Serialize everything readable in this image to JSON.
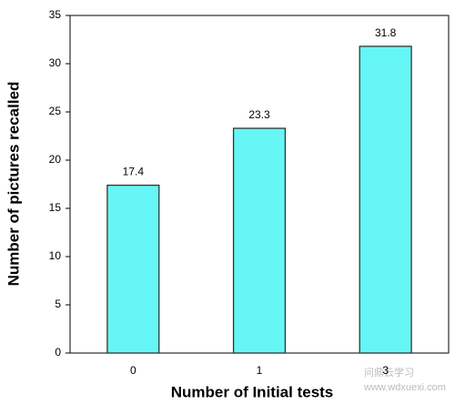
{
  "chart_data": {
    "type": "bar",
    "x_label": "Number of Initial tests",
    "y_label": "Number of pictures recalled",
    "categories": [
      "0",
      "1",
      "3"
    ],
    "values": [
      17.4,
      23.3,
      31.8
    ],
    "color": "#66f6f6",
    "ylim": [
      0,
      35
    ],
    "yticks": [
      0,
      5,
      10,
      15,
      20,
      25,
      30,
      35
    ],
    "grid": false,
    "watermark": [
      "问鼎云学习",
      "www.wdxuexi.com"
    ]
  }
}
